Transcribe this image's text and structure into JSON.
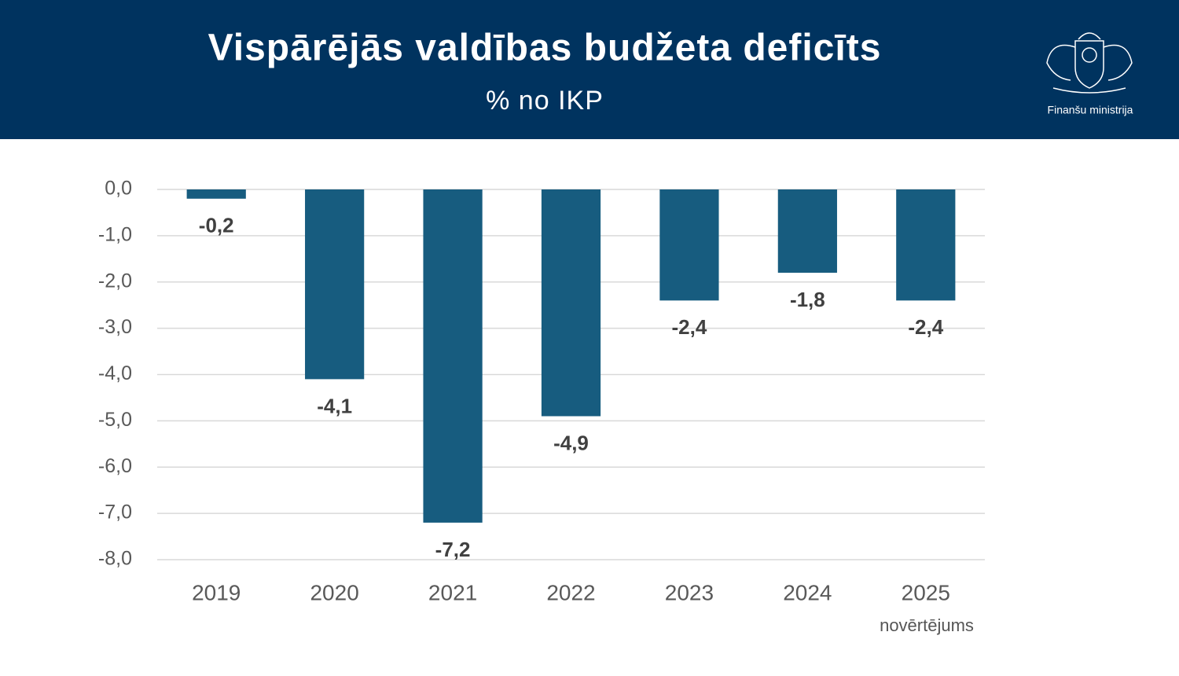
{
  "header": {
    "logo_text": "Finanšu ministrija"
  },
  "chart_data": {
    "type": "bar",
    "title": "Vispārējās valdības budžeta deficīts",
    "subtitle": "% no IKP",
    "categories": [
      "2019",
      "2020",
      "2021",
      "2022",
      "2023",
      "2024",
      "2025"
    ],
    "category_note": "novērtējums",
    "values": [
      -0.2,
      -4.1,
      -7.2,
      -4.9,
      -2.4,
      -1.8,
      -2.4
    ],
    "value_labels": [
      "-0,2",
      "-4,1",
      "-7,2",
      "-4,9",
      "-2,4",
      "-1,8",
      "-2,4"
    ],
    "color": "#175c7f",
    "ylim": [
      -8,
      0
    ],
    "yticks": [
      {
        "value": 0,
        "label": "0,0"
      },
      {
        "value": -1,
        "label": "-1,0"
      },
      {
        "value": -2,
        "label": "-2,0"
      },
      {
        "value": -3,
        "label": "-3,0"
      },
      {
        "value": -4,
        "label": "-4,0"
      },
      {
        "value": -5,
        "label": "-5,0"
      },
      {
        "value": -6,
        "label": "-6,0"
      },
      {
        "value": -7,
        "label": "-7,0"
      },
      {
        "value": -8,
        "label": "-8,0"
      }
    ],
    "grid": true
  }
}
